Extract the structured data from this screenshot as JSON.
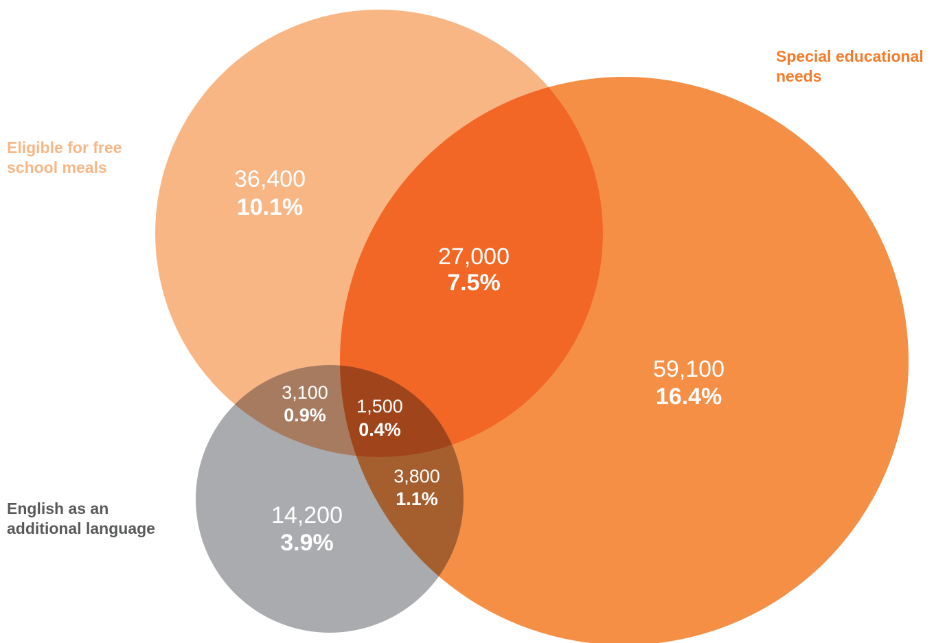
{
  "sets": [
    {
      "label": "Eligible for free school meals"
    },
    {
      "label": "Special educational needs"
    },
    {
      "label": "English as an additional language"
    }
  ],
  "regions": [
    {
      "count": "36,400",
      "share": "10.1%"
    },
    {
      "count": "27,000",
      "share": "7.5%"
    },
    {
      "count": "59,100",
      "share": "16.4%"
    },
    {
      "count": "3,100",
      "share": "0.9%"
    },
    {
      "count": "1,500",
      "share": "0.4%"
    },
    {
      "count": "3,800",
      "share": "1.1%"
    },
    {
      "count": "14,200",
      "share": "3.9%"
    }
  ]
}
